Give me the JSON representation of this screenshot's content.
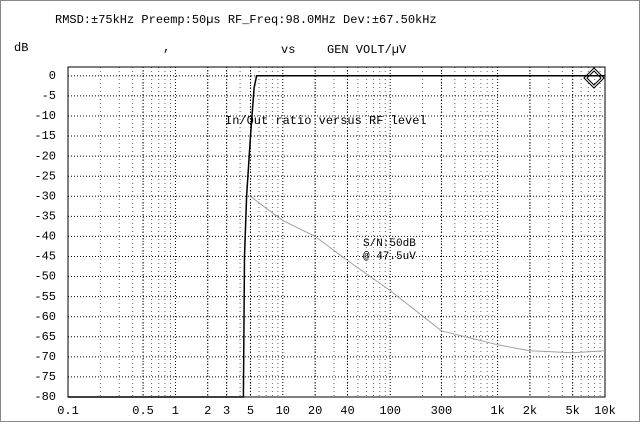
{
  "chart_data": {
    "type": "line",
    "title": "RMSD:±75kHz Preemp:50µs RF_Freq:98.0MHz Dev:±67.50kHz",
    "y_label": "dB",
    "x_label_sep": ",",
    "x_label_vs": "vs",
    "x_label": "GEN VOLT/µV",
    "annotations": [
      "In/Out ratio versus RF level",
      "S/N:50dB",
      "@ 47.5uV"
    ],
    "xscale": "log",
    "grid": true,
    "xlim": [
      0.1,
      10000
    ],
    "ylim": [
      -80,
      2.2
    ],
    "xticks": [
      0.1,
      0.5,
      1,
      2,
      3,
      5,
      10,
      20,
      40,
      100,
      300,
      {
        "value": 1000,
        "label": "1k"
      },
      {
        "value": 2000,
        "label": "2k"
      },
      {
        "value": 5000,
        "label": "5k"
      },
      {
        "value": 10000,
        "label": "10k"
      }
    ],
    "yticks": [
      0,
      -5,
      -10,
      -15,
      -20,
      -25,
      -30,
      -35,
      -40,
      -45,
      -50,
      -55,
      -60,
      -65,
      -70,
      -75,
      -80
    ],
    "series": [
      {
        "color": "#000000",
        "x": [
          0.1,
          4.3,
          4.4,
          4.6,
          5.0,
          5.4,
          5.7,
          10000
        ],
        "values": [
          -80,
          -80,
          -45,
          -30,
          -15,
          -3,
          0,
          0
        ]
      },
      {
        "color": "#a0a0a0",
        "x": [
          5,
          7,
          10,
          20,
          40,
          100,
          300,
          1000,
          2000,
          5000,
          10000
        ],
        "values": [
          -30,
          -33,
          -36,
          -40,
          -46,
          -53.5,
          -63.5,
          -67,
          -68.5,
          -69,
          -68.5
        ]
      }
    ]
  }
}
